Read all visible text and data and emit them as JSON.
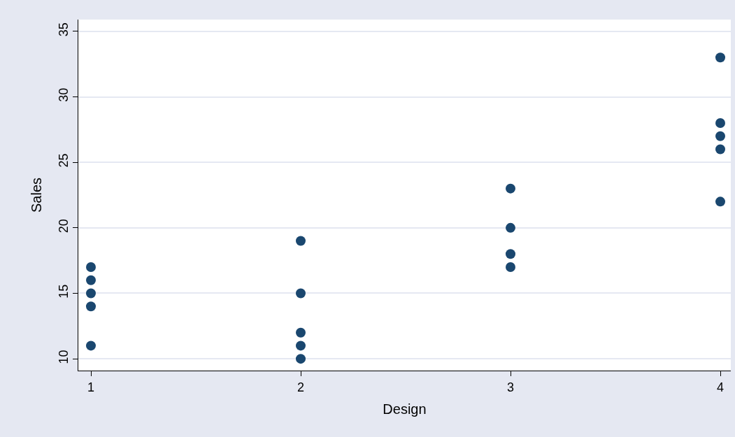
{
  "chart_data": {
    "type": "scatter",
    "xlabel": "Design",
    "ylabel": "Sales",
    "x": [
      1,
      1,
      1,
      1,
      1,
      2,
      2,
      2,
      2,
      2,
      3,
      3,
      3,
      3,
      4,
      4,
      4,
      4,
      4
    ],
    "series": [
      {
        "color": "#1a476f",
        "values": [
          17,
          16,
          15,
          14,
          11,
          19,
          15,
          12,
          11,
          10,
          23,
          20,
          18,
          17,
          33,
          28,
          27,
          26,
          22
        ]
      }
    ],
    "xlim": [
      0.94,
      4.05
    ],
    "xticks": [
      1,
      2,
      3,
      4
    ],
    "ylim": [
      9.1,
      35.9
    ],
    "yticks": [
      10,
      15,
      20,
      25,
      30,
      35
    ],
    "grid": "y",
    "marker": "circle"
  }
}
